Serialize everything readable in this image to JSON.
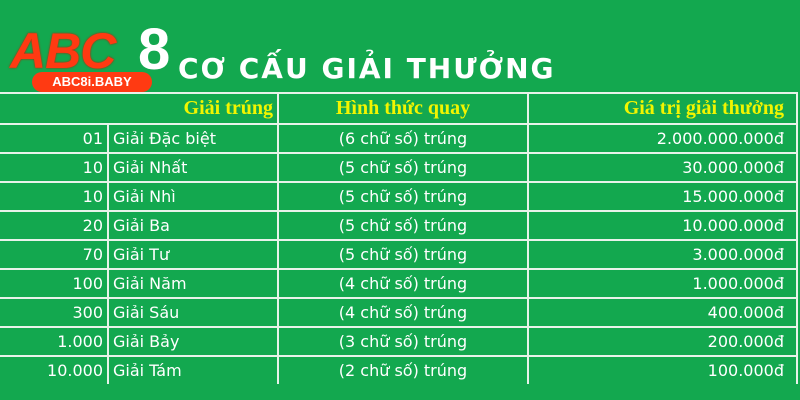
{
  "logo": {
    "main": "ABC",
    "digit": "8",
    "domain": "ABC8i.BABY"
  },
  "title": "CƠ CẤU GIẢI THƯỞNG",
  "colors": {
    "background": "#13a84f",
    "header_text": "#f2f500",
    "logo_red": "#ff3a12"
  },
  "table": {
    "headers": [
      "Giải trúng",
      "Hình thức quay",
      "Giá trị giải thưởng"
    ],
    "rows": [
      {
        "count": "01",
        "prize": "Giải Đặc biệt",
        "method": "(6 chữ số) trúng",
        "value": "2.000.000.000đ"
      },
      {
        "count": "10",
        "prize": "Giải Nhất",
        "method": "(5 chữ số) trúng",
        "value": "30.000.000đ"
      },
      {
        "count": "10",
        "prize": "Giải Nhì",
        "method": "(5 chữ số) trúng",
        "value": "15.000.000đ"
      },
      {
        "count": "20",
        "prize": "Giải Ba",
        "method": "(5 chữ số) trúng",
        "value": "10.000.000đ"
      },
      {
        "count": "70",
        "prize": "Giải Tư",
        "method": "(5 chữ số) trúng",
        "value": "3.000.000đ"
      },
      {
        "count": "100",
        "prize": "Giải Năm",
        "method": "(4 chữ số) trúng",
        "value": "1.000.000đ"
      },
      {
        "count": "300",
        "prize": "Giải Sáu",
        "method": "(4 chữ số) trúng",
        "value": "400.000đ"
      },
      {
        "count": "1.000",
        "prize": "Giải Bảy",
        "method": "(3 chữ số) trúng",
        "value": "200.000đ"
      },
      {
        "count": "10.000",
        "prize": "Giải Tám",
        "method": "(2 chữ số) trúng",
        "value": "100.000đ"
      }
    ]
  }
}
